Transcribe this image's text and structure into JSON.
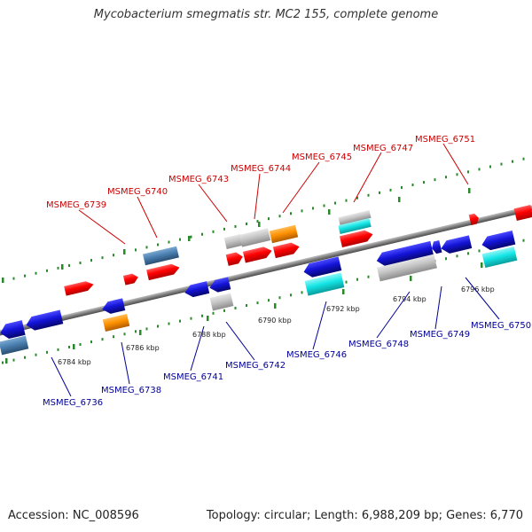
{
  "title": "Mycobacterium smegmatis str. MC2 155, complete genome",
  "footer": {
    "accession": "Accession: NC_008596",
    "summary": "Topology: circular; Length: 6,988,209 bp; Genes: 6,770"
  },
  "colors": {
    "forward_label": "#cc0000",
    "reverse_label": "#000099",
    "backbone": "#808080",
    "tick": "#2a8a2a",
    "red": "#ff0000",
    "blue": "#1414d8",
    "steelblue": "#4a7fb0",
    "gray": "#c4c4c4",
    "orange": "#ff9100",
    "cyan": "#14e6e6"
  },
  "scale_labels": [
    "6784 kbp",
    "6786 kbp",
    "6788 kbp",
    "6790 kbp",
    "6792 kbp",
    "6794 kbp",
    "6796 kbp"
  ],
  "forward_genes": [
    "MSMEG_6739",
    "MSMEG_6740",
    "MSMEG_6743",
    "MSMEG_6744",
    "MSMEG_6745",
    "MSMEG_6747",
    "MSMEG_6751"
  ],
  "reverse_genes": [
    "MSMEG_6736",
    "MSMEG_6738",
    "MSMEG_6741",
    "MSMEG_6742",
    "MSMEG_6746",
    "MSMEG_6748",
    "MSMEG_6749",
    "MSMEG_6750"
  ]
}
